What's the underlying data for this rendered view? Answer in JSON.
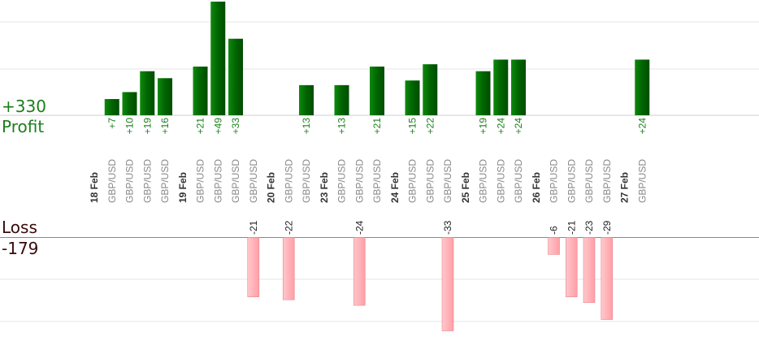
{
  "chart_data": {
    "type": "bar",
    "title": "",
    "summary": {
      "profit_total": "+330",
      "profit_label": "Profit",
      "loss_total": "-179",
      "loss_label": "Loss"
    },
    "colors": {
      "profit_bar": "#0a6e0a",
      "profit_text": "#1b7f1b",
      "loss_bar": "#ffb3b8",
      "loss_text": "#222222",
      "grid": "#e6e6e6",
      "axis": "#888888"
    },
    "profit_max": 49,
    "loss_max": 33,
    "columns": [
      {
        "label": "18 Feb",
        "kind": "date"
      },
      {
        "label": "GBP/USD",
        "kind": "trade",
        "value": 7,
        "display": "+7"
      },
      {
        "label": "GBP/USD",
        "kind": "trade",
        "value": 10,
        "display": "+10"
      },
      {
        "label": "GBP/USD",
        "kind": "trade",
        "value": 19,
        "display": "+19"
      },
      {
        "label": "GBP/USD",
        "kind": "trade",
        "value": 16,
        "display": "+16"
      },
      {
        "label": "19 Feb",
        "kind": "date"
      },
      {
        "label": "GBP/USD",
        "kind": "trade",
        "value": 21,
        "display": "+21"
      },
      {
        "label": "GBP/USD",
        "kind": "trade",
        "value": 49,
        "display": "+49"
      },
      {
        "label": "GBP/USD",
        "kind": "trade",
        "value": 33,
        "display": "+33"
      },
      {
        "label": "GBP/USD",
        "kind": "trade",
        "value": -21,
        "display": "-21"
      },
      {
        "label": "20 Feb",
        "kind": "date"
      },
      {
        "label": "GBP/USD",
        "kind": "trade",
        "value": -22,
        "display": "-22"
      },
      {
        "label": "GBP/USD",
        "kind": "trade",
        "value": 13,
        "display": "+13"
      },
      {
        "label": "23 Feb",
        "kind": "date"
      },
      {
        "label": "GBP/USD",
        "kind": "trade",
        "value": 13,
        "display": "+13"
      },
      {
        "label": "GBP/USD",
        "kind": "trade",
        "value": -24,
        "display": "-24"
      },
      {
        "label": "GBP/USD",
        "kind": "trade",
        "value": 21,
        "display": "+21"
      },
      {
        "label": "24 Feb",
        "kind": "date"
      },
      {
        "label": "GBP/USD",
        "kind": "trade",
        "value": 15,
        "display": "+15"
      },
      {
        "label": "GBP/USD",
        "kind": "trade",
        "value": 22,
        "display": "+22"
      },
      {
        "label": "GBP/USD",
        "kind": "trade",
        "value": -33,
        "display": "-33"
      },
      {
        "label": "25 Feb",
        "kind": "date"
      },
      {
        "label": "GBP/USD",
        "kind": "trade",
        "value": 19,
        "display": "+19"
      },
      {
        "label": "GBP/USD",
        "kind": "trade",
        "value": 24,
        "display": "+24"
      },
      {
        "label": "GBP/USD",
        "kind": "trade",
        "value": 24,
        "display": "+24"
      },
      {
        "label": "26 Feb",
        "kind": "date"
      },
      {
        "label": "GBP/USD",
        "kind": "trade",
        "value": -6,
        "display": "-6"
      },
      {
        "label": "GBP/USD",
        "kind": "trade",
        "value": -21,
        "display": "-21"
      },
      {
        "label": "GBP/USD",
        "kind": "trade",
        "value": -23,
        "display": "-23"
      },
      {
        "label": "GBP/USD",
        "kind": "trade",
        "value": -29,
        "display": "-29"
      },
      {
        "label": "27 Feb",
        "kind": "date"
      },
      {
        "label": "GBP/USD",
        "kind": "trade",
        "value": 24,
        "display": "+24"
      }
    ]
  }
}
